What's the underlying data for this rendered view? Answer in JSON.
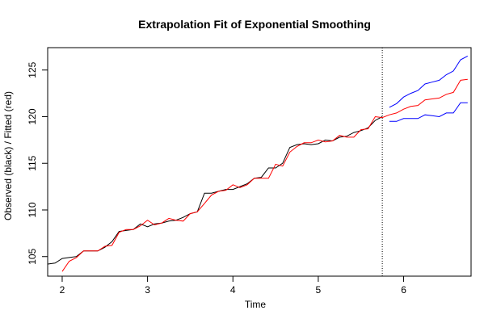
{
  "chart_data": {
    "type": "line",
    "title": "Extrapolation Fit of Exponential Smoothing",
    "xlabel": "Time",
    "ylabel": "Observed (black) / Fitted (red)",
    "xlim": [
      1.83,
      6.79
    ],
    "ylim": [
      102.9,
      127.4
    ],
    "x_ticks": [
      2,
      3,
      4,
      5,
      6
    ],
    "y_ticks": [
      105,
      110,
      115,
      120,
      125
    ],
    "forecast_origin": 5.75,
    "grid": false,
    "legend": "none",
    "series": [
      {
        "color": "#000000",
        "x": [
          1.833,
          1.917,
          2.0,
          2.083,
          2.167,
          2.25,
          2.333,
          2.417,
          2.5,
          2.583,
          2.667,
          2.75,
          2.833,
          2.917,
          3.0,
          3.083,
          3.167,
          3.25,
          3.333,
          3.417,
          3.5,
          3.583,
          3.667,
          3.75,
          3.833,
          3.917,
          4.0,
          4.083,
          4.167,
          4.25,
          4.333,
          4.417,
          4.5,
          4.583,
          4.667,
          4.75,
          4.833,
          4.917,
          5.0,
          5.083,
          5.167,
          5.25,
          5.333,
          5.417,
          5.5,
          5.583,
          5.667,
          5.75
        ],
        "values": [
          104.2,
          104.3,
          104.8,
          104.9,
          105.0,
          105.6,
          105.6,
          105.6,
          106.0,
          106.6,
          107.7,
          107.8,
          107.9,
          108.5,
          108.2,
          108.5,
          108.6,
          108.8,
          108.9,
          109.2,
          109.6,
          109.8,
          111.8,
          111.8,
          112.0,
          112.2,
          112.2,
          112.5,
          112.8,
          113.4,
          113.5,
          114.5,
          114.5,
          115.0,
          116.7,
          117.0,
          117.1,
          117.0,
          117.1,
          117.5,
          117.4,
          117.8,
          117.9,
          118.3,
          118.5,
          118.8,
          119.6,
          120.0
        ]
      },
      {
        "color": "#ff0000",
        "x": [
          2.0,
          2.083,
          2.167,
          2.25,
          2.333,
          2.417,
          2.5,
          2.583,
          2.667,
          2.75,
          2.833,
          2.917,
          3.0,
          3.083,
          3.167,
          3.25,
          3.333,
          3.417,
          3.5,
          3.583,
          3.667,
          3.75,
          3.833,
          3.917,
          4.0,
          4.083,
          4.167,
          4.25,
          4.333,
          4.417,
          4.5,
          4.583,
          4.667,
          4.75,
          4.833,
          4.917,
          5.0,
          5.083,
          5.167,
          5.25,
          5.333,
          5.417,
          5.5,
          5.583,
          5.667,
          5.75,
          5.833,
          5.917,
          6.0,
          6.083,
          6.167,
          6.25,
          6.333,
          6.417,
          6.5,
          6.583,
          6.667,
          6.75
        ],
        "values": [
          103.4,
          104.5,
          104.9,
          105.6,
          105.6,
          105.6,
          106.1,
          106.2,
          107.6,
          107.9,
          107.9,
          108.3,
          108.9,
          108.4,
          108.6,
          109.1,
          108.9,
          108.8,
          109.6,
          109.8,
          110.7,
          111.6,
          112.0,
          112.1,
          112.7,
          112.4,
          112.7,
          113.4,
          113.4,
          113.4,
          114.9,
          114.7,
          116.2,
          116.8,
          117.2,
          117.2,
          117.5,
          117.3,
          117.4,
          118.0,
          117.8,
          117.8,
          118.6,
          118.7,
          120.0,
          119.9,
          120.2,
          120.4,
          120.8,
          121.1,
          121.2,
          121.8,
          121.9,
          122.0,
          122.4,
          122.6,
          123.9,
          124.0
        ]
      },
      {
        "color": "#0000ff",
        "x": [
          5.833,
          5.917,
          6.0,
          6.083,
          6.167,
          6.25,
          6.333,
          6.417,
          6.5,
          6.583,
          6.667,
          6.75
        ],
        "values": [
          121.0,
          121.4,
          122.1,
          122.5,
          122.8,
          123.5,
          123.7,
          123.9,
          124.5,
          124.9,
          126.1,
          126.5
        ]
      },
      {
        "color": "#0000ff",
        "x": [
          5.833,
          5.917,
          6.0,
          6.083,
          6.167,
          6.25,
          6.333,
          6.417,
          6.5,
          6.583,
          6.667,
          6.75
        ],
        "values": [
          119.5,
          119.5,
          119.8,
          119.8,
          119.8,
          120.2,
          120.1,
          120.0,
          120.4,
          120.4,
          121.5,
          121.5
        ]
      }
    ]
  }
}
